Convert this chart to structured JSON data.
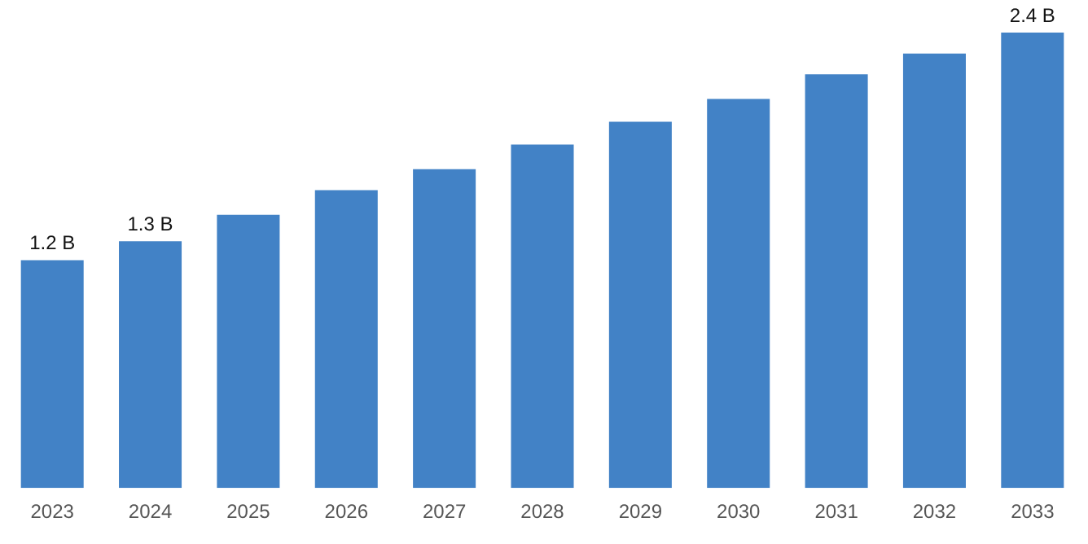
{
  "chart_data": {
    "type": "bar",
    "categories": [
      "2023",
      "2024",
      "2025",
      "2026",
      "2027",
      "2028",
      "2029",
      "2030",
      "2031",
      "2032",
      "2033"
    ],
    "values": [
      1.2,
      1.3,
      1.44,
      1.57,
      1.68,
      1.81,
      1.93,
      2.05,
      2.18,
      2.29,
      2.4
    ],
    "value_labels": [
      "1.2 B",
      "1.3 B",
      null,
      null,
      null,
      null,
      null,
      null,
      null,
      null,
      "2.4 B"
    ],
    "color": "#4282c6",
    "grid": false,
    "legend": false
  }
}
